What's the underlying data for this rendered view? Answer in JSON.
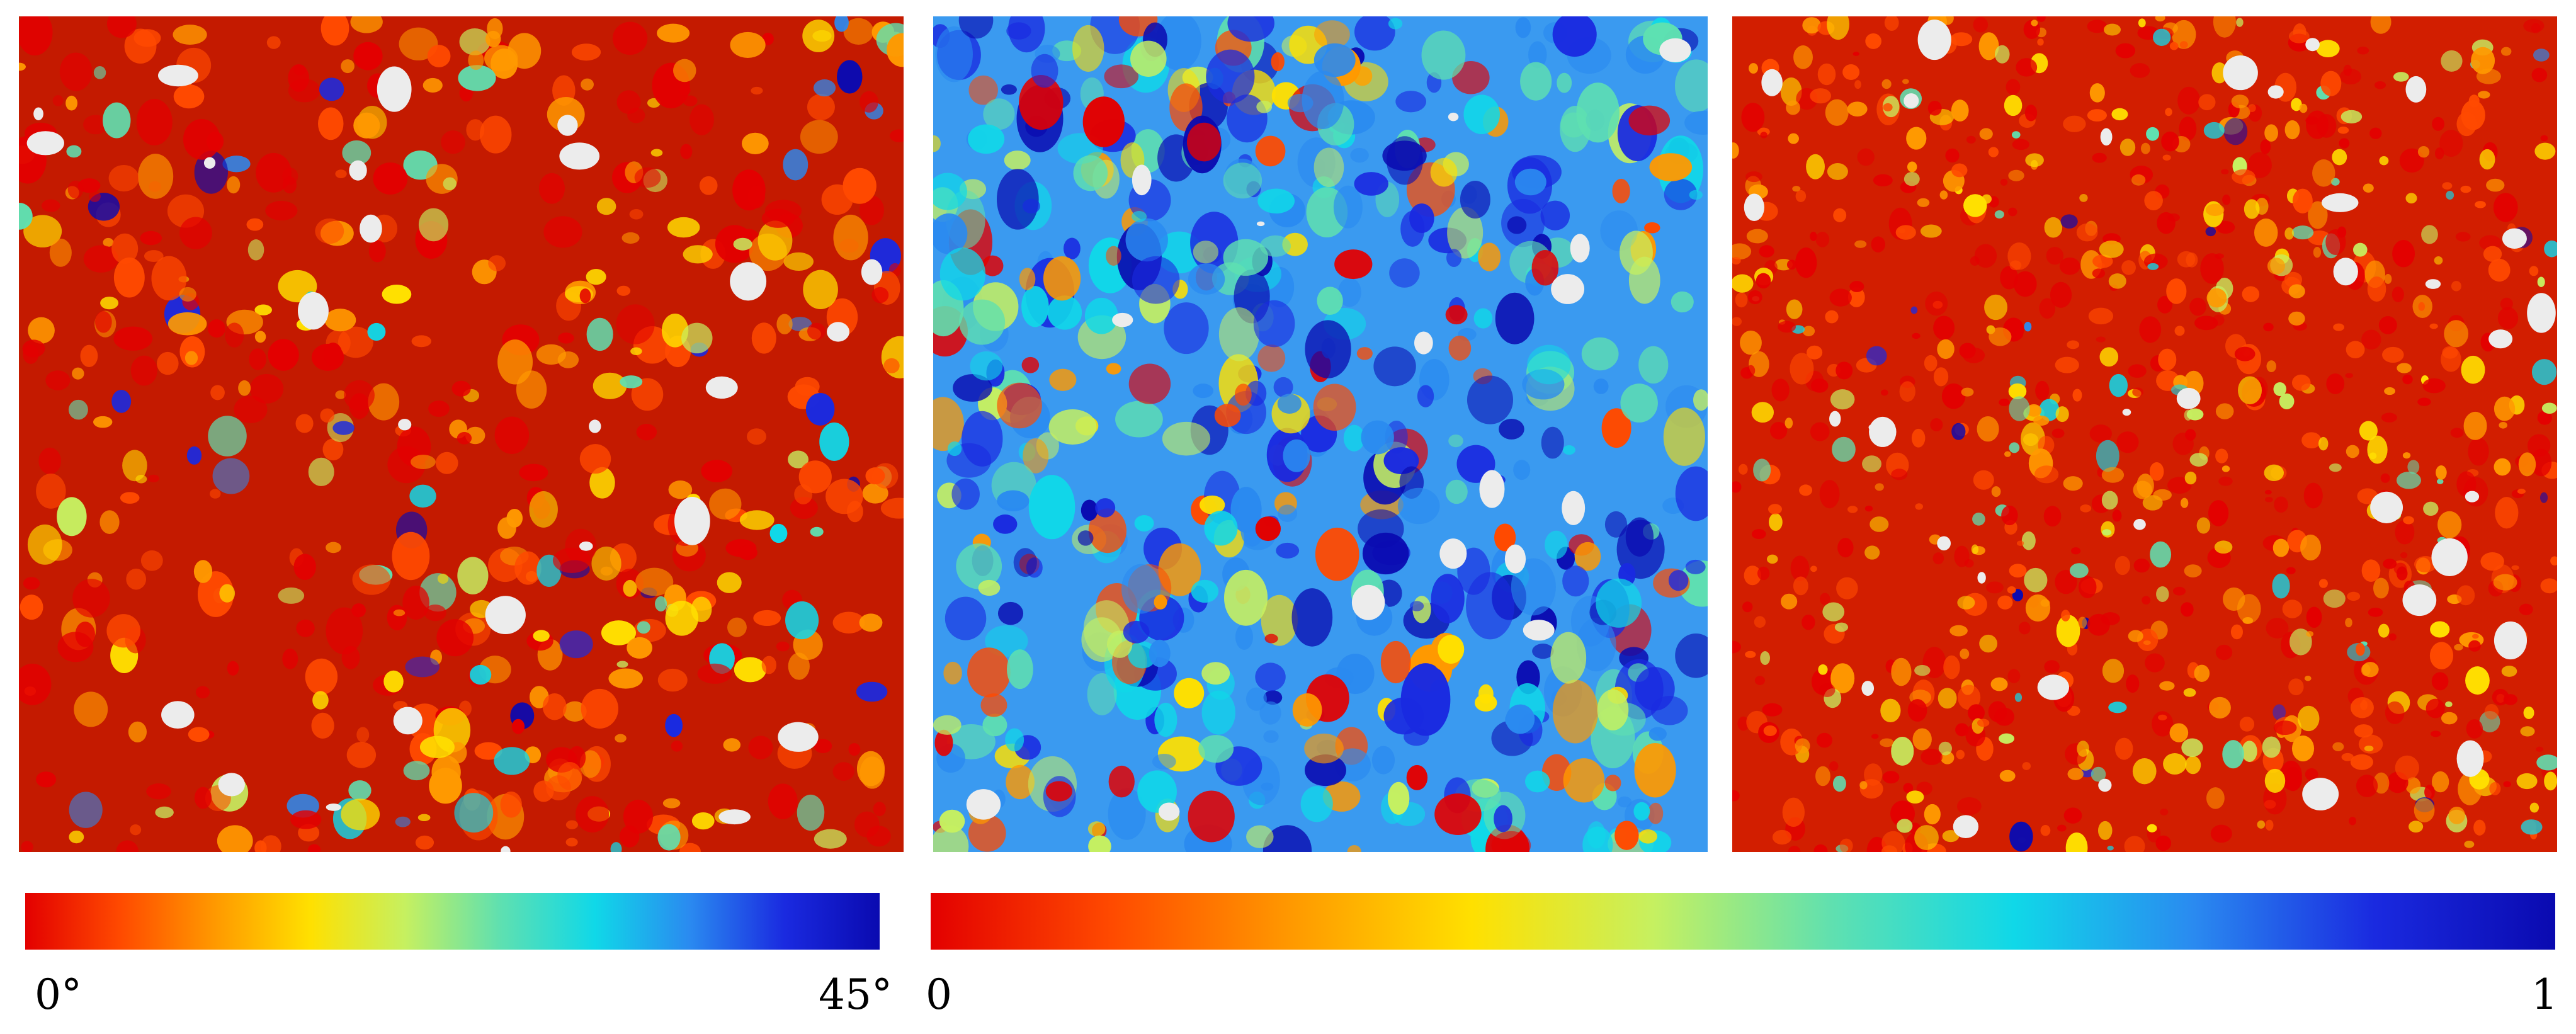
{
  "panels": [
    {
      "name": "angle-map",
      "dominant": "red",
      "pattern": "low-angle"
    },
    {
      "name": "blue-field-map",
      "dominant": "blue",
      "pattern": "mixed"
    },
    {
      "name": "fine-grain-map",
      "dominant": "red-orange",
      "pattern": "fine"
    }
  ],
  "colormap": [
    "#e30000",
    "#ff4a00",
    "#ff9900",
    "#ffe000",
    "#c6f060",
    "#5fe0b0",
    "#10d8e8",
    "#2a8af0",
    "#1a2ae0",
    "#0a0ab0"
  ],
  "missing_color": "#ececec",
  "colorbars": {
    "angle": {
      "min_label": "0°",
      "max_label": "45°"
    },
    "unit": {
      "min_label": "0",
      "max_label": "1"
    }
  }
}
